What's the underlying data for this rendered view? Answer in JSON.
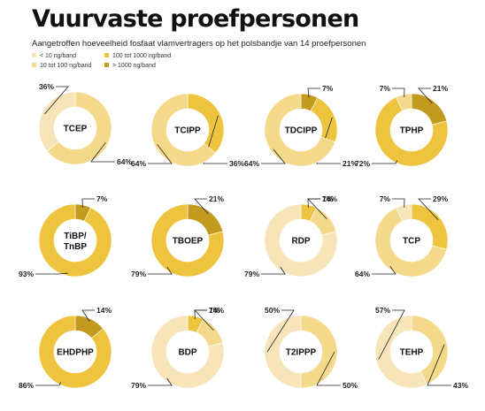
{
  "title": "Vuurvaste proefpersonen",
  "subtitle": "Aangetroffen hoeveelheid fosfaat vlamvertragers op het polsbandje van 14 proefpersonen",
  "colors": {
    "lt10": "#f7e4b8",
    "10to100": "#f4d98a",
    "100to1000": "#eec43e",
    "gt1000": "#c29a1e"
  },
  "legend": [
    {
      "key": "lt10",
      "label": "< 10 ng/band"
    },
    {
      "key": "10to100",
      "label": "10 tot 100 ng/band"
    },
    {
      "key": "100to1000",
      "label": "100 tot 1000 ng/band"
    },
    {
      "key": "gt1000",
      "label": "> 1000 ng/band"
    }
  ],
  "chart_data": [
    {
      "type": "pie",
      "title": "TCEP",
      "slices": [
        {
          "category": "lt10",
          "value": 36,
          "label": "36%"
        },
        {
          "category": "10to100",
          "value": 64,
          "label": "64%"
        }
      ]
    },
    {
      "type": "pie",
      "title": "TCIPP",
      "slices": [
        {
          "category": "10to100",
          "value": 64,
          "label": "64%"
        },
        {
          "category": "100to1000",
          "value": 36,
          "label": "36%"
        }
      ]
    },
    {
      "type": "pie",
      "title": "TDCIPP",
      "slices": [
        {
          "category": "10to100",
          "value": 64,
          "label": "64%"
        },
        {
          "category": "100to1000",
          "value": 21,
          "label": "21%"
        },
        {
          "category": "gt1000",
          "value": 7,
          "label": "7%"
        }
      ]
    },
    {
      "type": "pie",
      "title": "TPHP",
      "slices": [
        {
          "category": "10to100",
          "value": 7,
          "label": "7%"
        },
        {
          "category": "100to1000",
          "value": 72,
          "label": "72%"
        },
        {
          "category": "gt1000",
          "value": 21,
          "label": "21%"
        }
      ]
    },
    {
      "type": "pie",
      "title": "TiBP/ TnBP",
      "slices": [
        {
          "category": "100to1000",
          "value": 93,
          "label": "93%"
        },
        {
          "category": "gt1000",
          "value": 7,
          "label": "7%"
        }
      ]
    },
    {
      "type": "pie",
      "title": "TBOEP",
      "slices": [
        {
          "category": "100to1000",
          "value": 79,
          "label": "79%"
        },
        {
          "category": "gt1000",
          "value": 21,
          "label": "21%"
        }
      ]
    },
    {
      "type": "pie",
      "title": "RDP",
      "slices": [
        {
          "category": "lt10",
          "value": 79,
          "label": "79%"
        },
        {
          "category": "10to100",
          "value": 14,
          "label": "14%"
        },
        {
          "category": "100to1000",
          "value": 7,
          "label": "7%"
        }
      ]
    },
    {
      "type": "pie",
      "title": "TCP",
      "slices": [
        {
          "category": "lt10",
          "value": 7,
          "label": "7%"
        },
        {
          "category": "10to100",
          "value": 64,
          "label": "64%"
        },
        {
          "category": "100to1000",
          "value": 29,
          "label": "29%"
        }
      ]
    },
    {
      "type": "pie",
      "title": "EHDPHP",
      "slices": [
        {
          "category": "100to1000",
          "value": 86,
          "label": "86%"
        },
        {
          "category": "gt1000",
          "value": 14,
          "label": "14%"
        }
      ]
    },
    {
      "type": "pie",
      "title": "BDP",
      "slices": [
        {
          "category": "lt10",
          "value": 79,
          "label": "79%"
        },
        {
          "category": "10to100",
          "value": 14,
          "label": "14%"
        },
        {
          "category": "100to1000",
          "value": 7,
          "label": "7%"
        }
      ]
    },
    {
      "type": "pie",
      "title": "T2IPPP",
      "slices": [
        {
          "category": "lt10",
          "value": 50,
          "label": "50%"
        },
        {
          "category": "10to100",
          "value": 50,
          "label": "50%"
        }
      ]
    },
    {
      "type": "pie",
      "title": "TEHP",
      "slices": [
        {
          "category": "lt10",
          "value": 57,
          "label": "57%"
        },
        {
          "category": "10to100",
          "value": 43,
          "label": "43%"
        }
      ]
    }
  ]
}
